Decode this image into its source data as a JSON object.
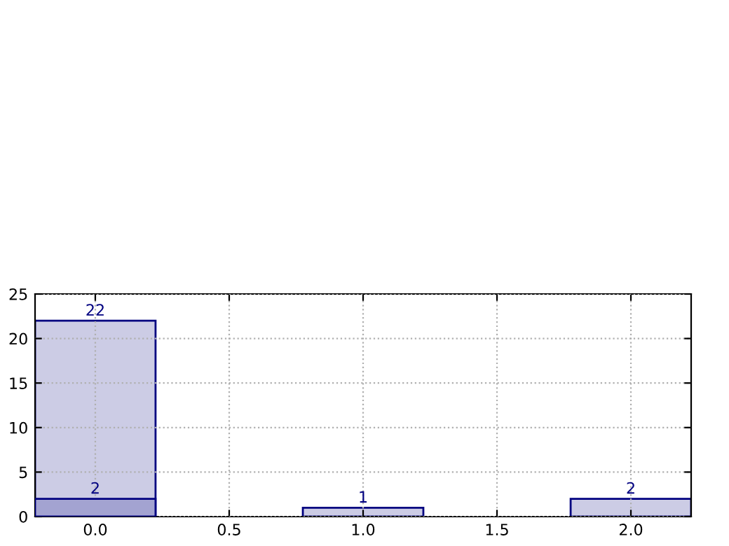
{
  "chart_data": {
    "type": "bar",
    "x": [
      0,
      1,
      2
    ],
    "series": [
      {
        "color": "#ccccE5",
        "values": [
          22,
          1,
          2
        ]
      },
      {
        "color": "#a3a3d1",
        "values": [
          2,
          null,
          null
        ]
      }
    ],
    "xlim": [
      -0.225,
      2.225
    ],
    "xticks": [
      {
        "value": 0,
        "label": "0.0"
      },
      {
        "value": 0.5,
        "label": "0.5"
      },
      {
        "value": 1,
        "label": "1.0"
      },
      {
        "value": 1.5,
        "label": "1.5"
      },
      {
        "value": 2,
        "label": "2.0"
      }
    ],
    "ylim": [
      0,
      25
    ],
    "yticks": [
      0,
      5,
      10,
      15,
      20,
      25
    ],
    "grid": true,
    "data_labels": true
  }
}
